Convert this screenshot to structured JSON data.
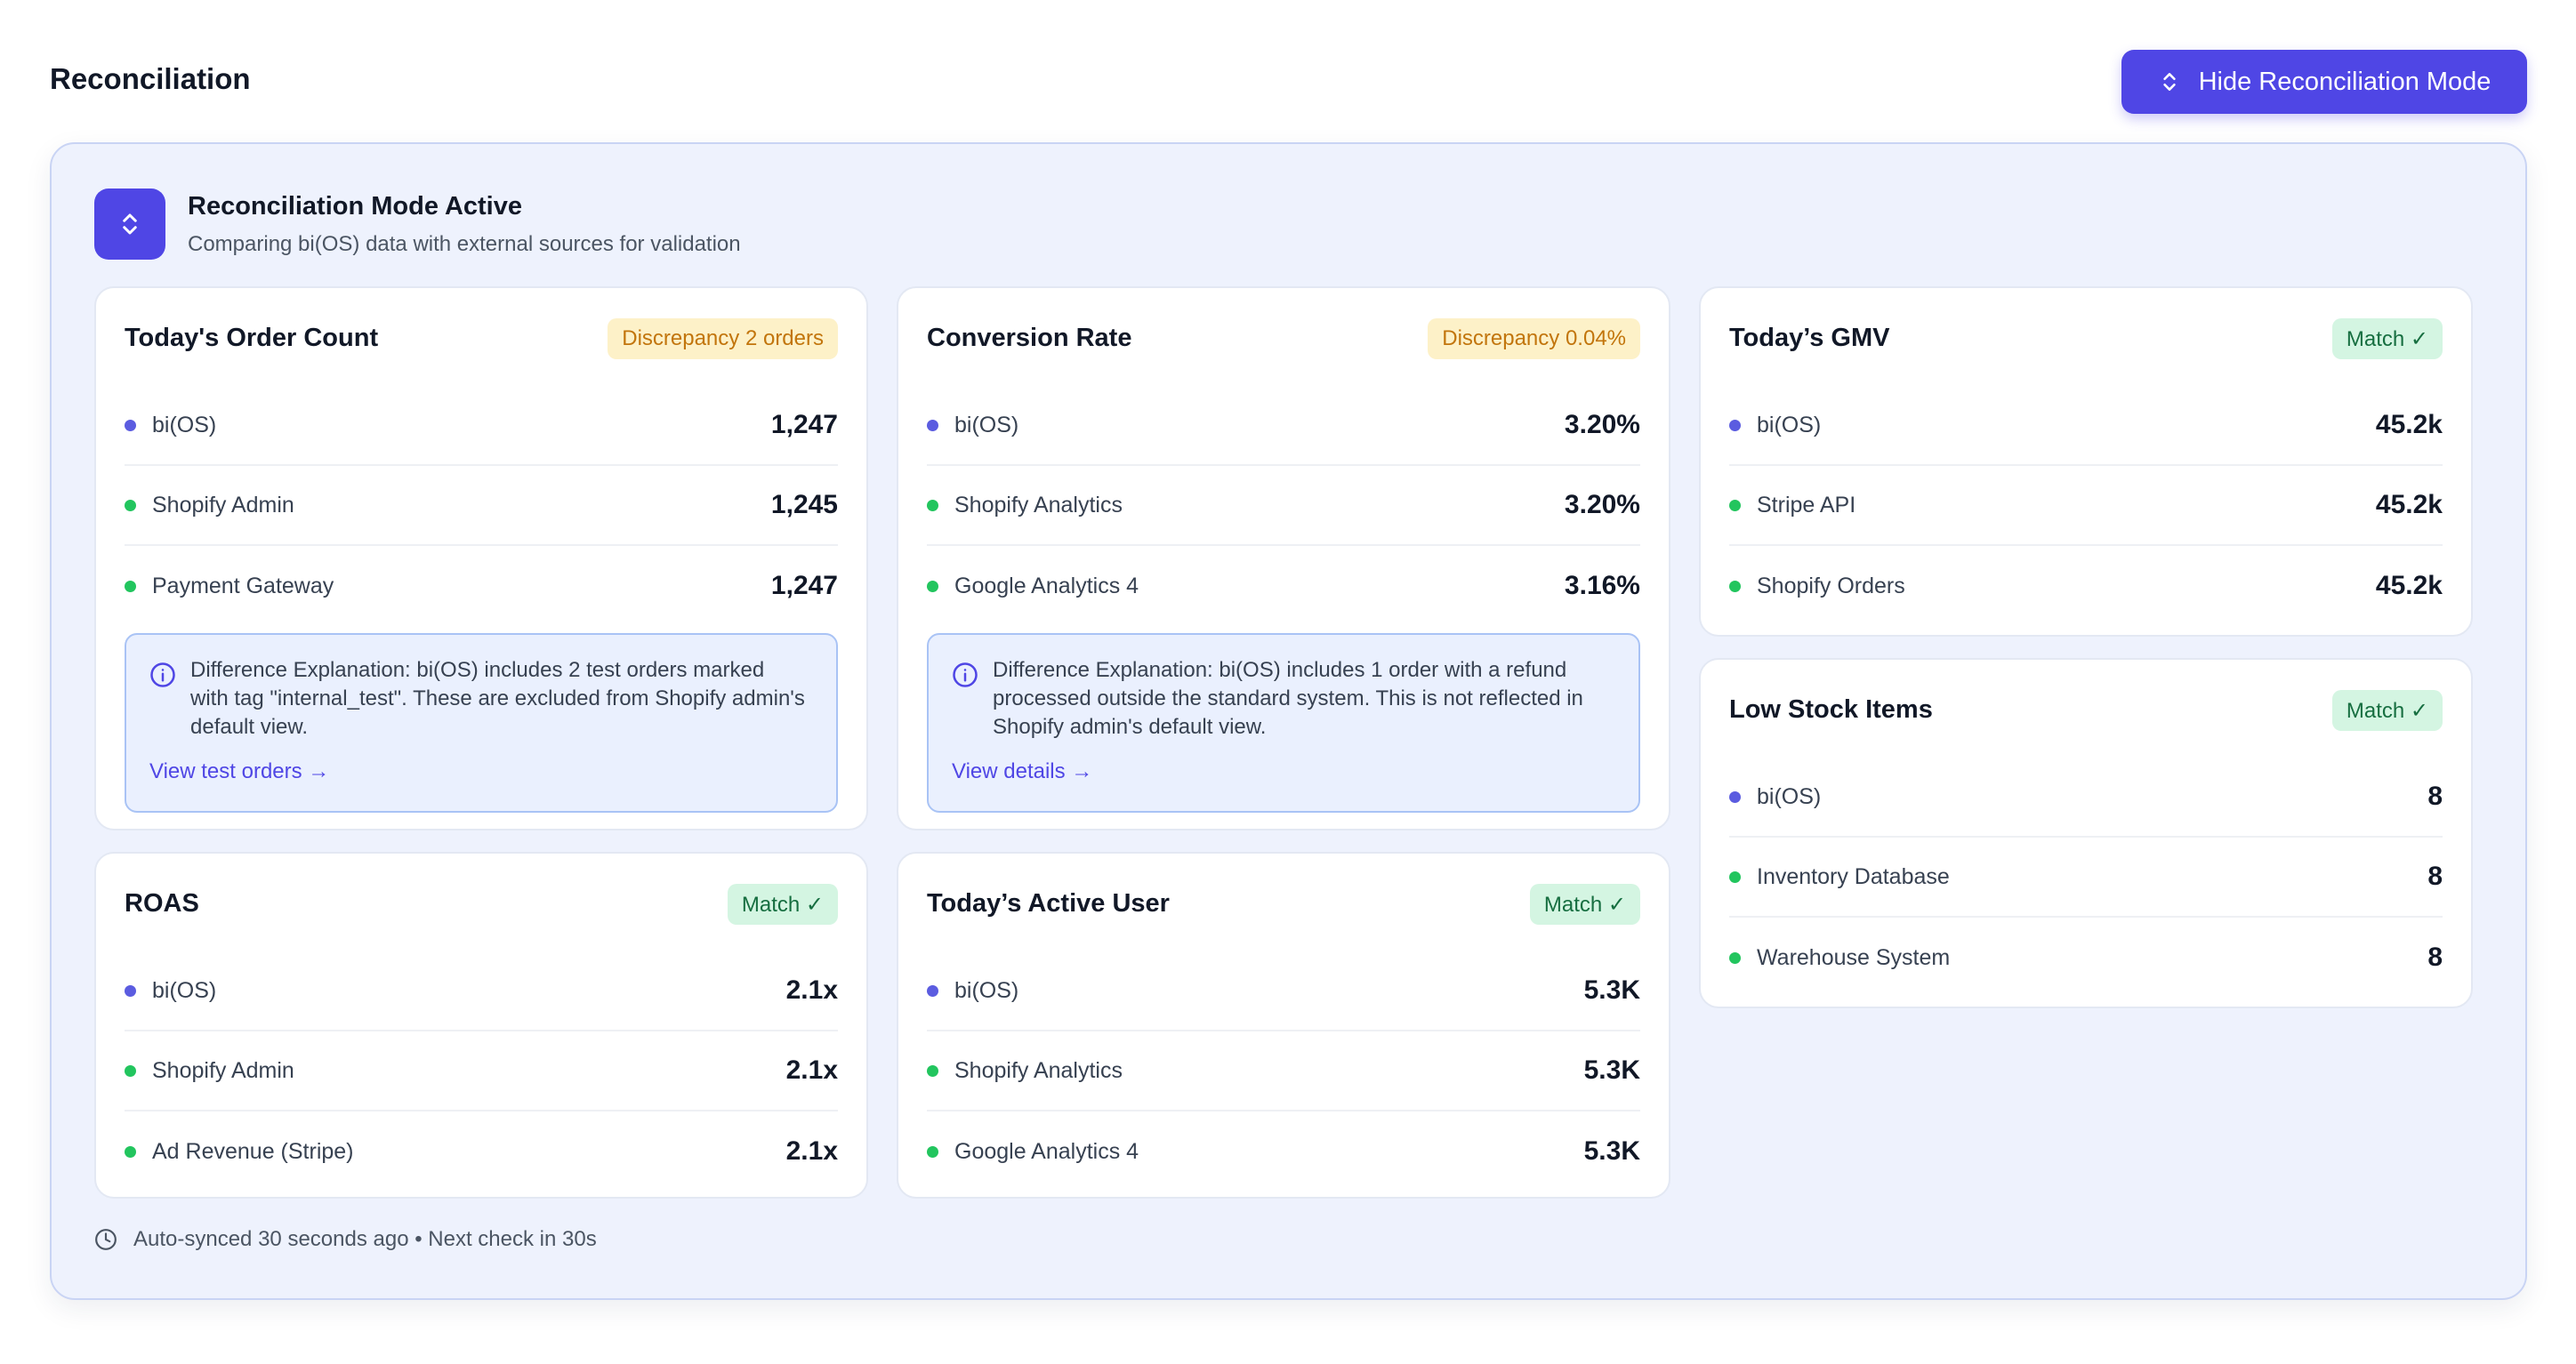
{
  "header": {
    "title": "Reconciliation",
    "hide_button_label": "Hide Reconciliation Mode"
  },
  "mode": {
    "title": "Reconciliation Mode Active",
    "subtitle": "Comparing bi(OS) data with external sources for validation"
  },
  "cards": {
    "order_count": {
      "title": "Today's Order Count",
      "badge": "Discrepancy 2 orders",
      "rows": [
        {
          "source": "bi(OS)",
          "value": "1,247"
        },
        {
          "source": "Shopify Admin",
          "value": "1,245"
        },
        {
          "source": "Payment Gateway",
          "value": "1,247"
        }
      ],
      "explanation": "Difference Explanation: bi(OS) includes 2 test orders marked with tag \"internal_test\". These are excluded from Shopify admin's default view.",
      "link": "View test orders →"
    },
    "conversion": {
      "title": "Conversion Rate",
      "badge": "Discrepancy 0.04%",
      "rows": [
        {
          "source": "bi(OS)",
          "value": "3.20%"
        },
        {
          "source": "Shopify Analytics",
          "value": "3.20%"
        },
        {
          "source": "Google Analytics 4",
          "value": "3.16%"
        }
      ],
      "explanation": "Difference Explanation: bi(OS) includes 1 order with a refund processed outside the standard system. This is not reflected in Shopify admin's default view.",
      "link": "View details →"
    },
    "gmv": {
      "title": "Today’s GMV",
      "badge": "Match ✓",
      "rows": [
        {
          "source": "bi(OS)",
          "value": "45.2k"
        },
        {
          "source": "Stripe API",
          "value": "45.2k"
        },
        {
          "source": "Shopify Orders",
          "value": "45.2k"
        }
      ]
    },
    "low_stock": {
      "title": "Low Stock Items",
      "badge": "Match ✓",
      "rows": [
        {
          "source": "bi(OS)",
          "value": "8"
        },
        {
          "source": "Inventory Database",
          "value": "8"
        },
        {
          "source": "Warehouse System",
          "value": "8"
        }
      ]
    },
    "roas": {
      "title": "ROAS",
      "badge": "Match ✓",
      "rows": [
        {
          "source": "bi(OS)",
          "value": "2.1x"
        },
        {
          "source": "Shopify Admin",
          "value": "2.1x"
        },
        {
          "source": "Ad Revenue (Stripe)",
          "value": "2.1x"
        }
      ]
    },
    "active_user": {
      "title": "Today’s Active User",
      "badge": "Match ✓",
      "rows": [
        {
          "source": "bi(OS)",
          "value": "5.3K"
        },
        {
          "source": "Shopify Analytics",
          "value": "5.3K"
        },
        {
          "source": "Google Analytics 4",
          "value": "5.3K"
        }
      ]
    }
  },
  "footer": {
    "sync_text": "Auto-synced 30 seconds ago • Next check in 30s"
  },
  "colors": {
    "accent": "#4f46e5",
    "panel_bg": "#eef2fd",
    "primary_dot": "#5b5ce0",
    "green_dot": "#22c55e",
    "warn_bg": "#fdf1c8",
    "warn_text": "#c2750c",
    "ok_bg": "#d4f5e2",
    "ok_text": "#166e40"
  },
  "icons": {
    "hide_button": "chevron-up-down-icon",
    "mode": "chevron-up-down-icon",
    "explanation": "info-icon",
    "footer": "clock-icon"
  }
}
